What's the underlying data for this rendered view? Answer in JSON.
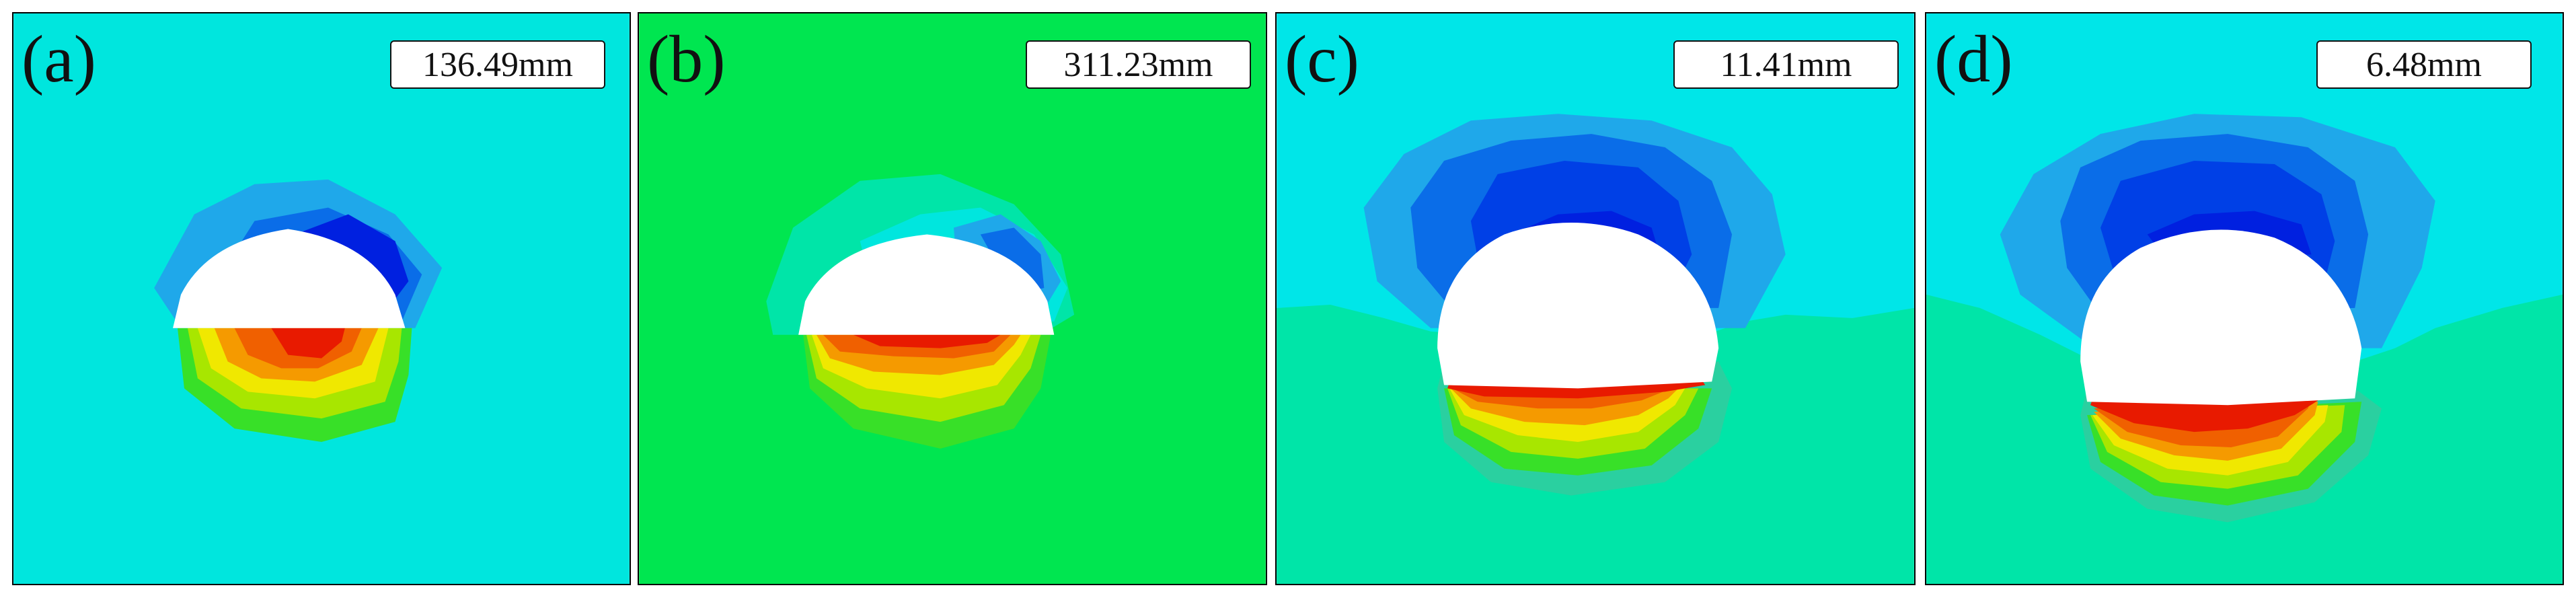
{
  "panels": [
    {
      "label": "(a)",
      "value": "136.49mm",
      "background": "#00e6de"
    },
    {
      "label": "(b)",
      "value": "311.23mm",
      "background": "#00e650"
    },
    {
      "label": "(c)",
      "value": "11.41mm",
      "background": "#00e6e8"
    },
    {
      "label": "(d)",
      "value": "6.48mm",
      "background": "#00e6e8"
    }
  ],
  "colors": {
    "cyan": "#00e5e5",
    "green": "#00e650",
    "teal": "#00e5a8",
    "light_blue": "#1fa8ea",
    "mid_blue": "#0a6de8",
    "deep_blue": "#0020e0",
    "green2": "#38e028",
    "yellow_green": "#a8e600",
    "yellow": "#f0e800",
    "orange": "#f59a00",
    "orange_red": "#f06000",
    "red": "#e81a00"
  }
}
